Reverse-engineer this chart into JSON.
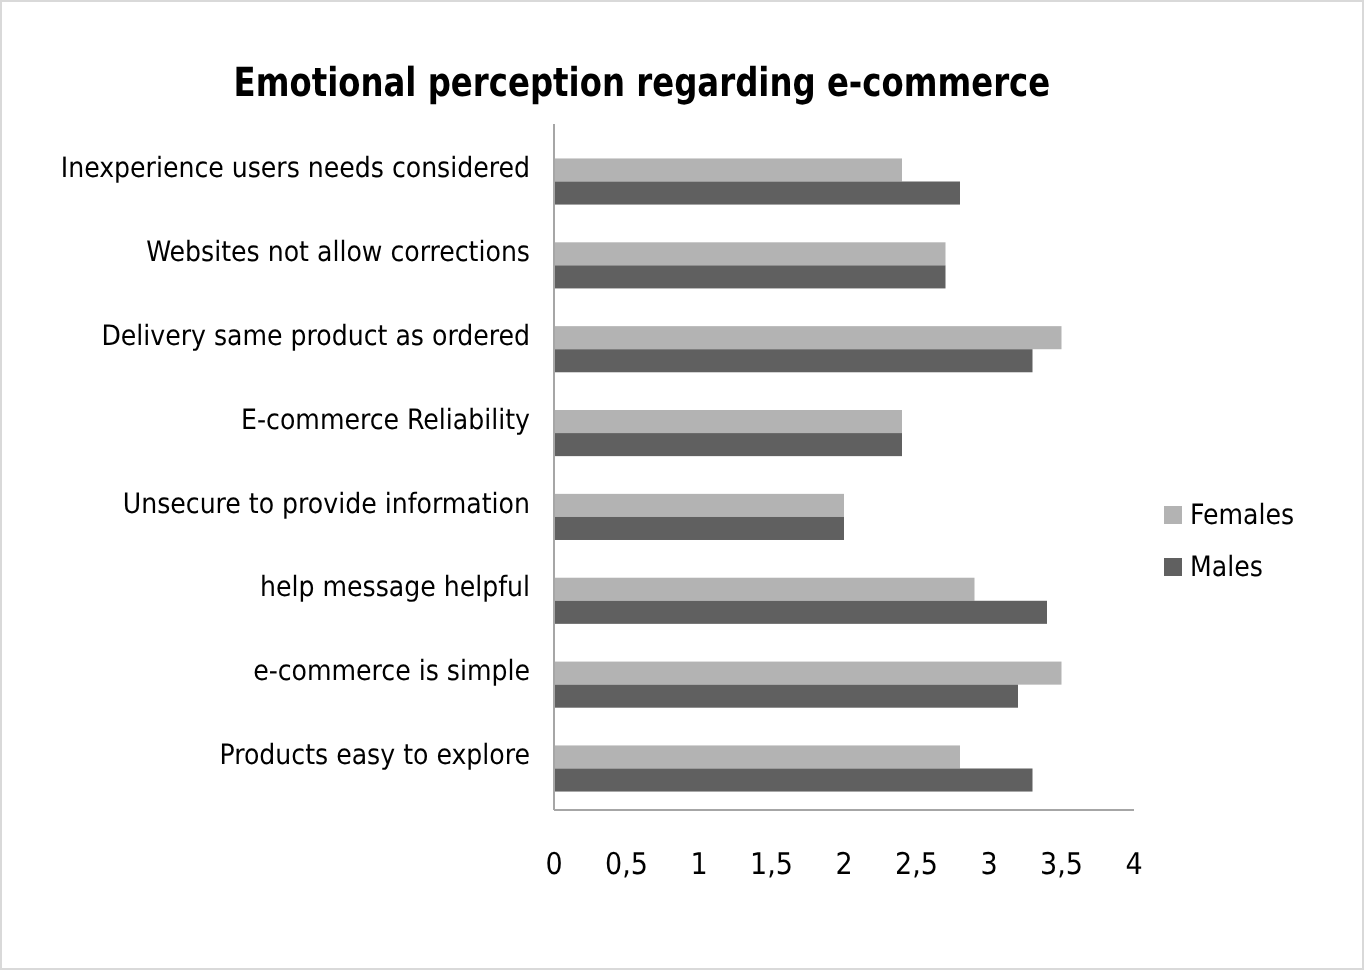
{
  "chart_data": {
    "type": "bar",
    "orientation": "horizontal",
    "title": "Emotional perception regarding e-commerce",
    "categories": [
      "Inexperience users needs considered",
      "Websites not allow corrections",
      "Delivery same product as ordered",
      "E-commerce Reliability",
      "Unsecure to provide information",
      "help message helpful",
      "e-commerce is simple",
      "Products easy to explore"
    ],
    "series": [
      {
        "name": "Females",
        "color": "#b3b3b3",
        "values": [
          2.4,
          2.7,
          3.5,
          2.4,
          2.0,
          2.9,
          3.5,
          2.8
        ]
      },
      {
        "name": "Males",
        "color": "#606060",
        "values": [
          2.8,
          2.7,
          3.3,
          2.4,
          2.0,
          3.4,
          3.2,
          3.3
        ]
      }
    ],
    "xlim": [
      0,
      4
    ],
    "xticks": [
      0,
      {
        "value": 0.5,
        "label": "0,5"
      },
      1,
      {
        "value": 1.5,
        "label": "1,5"
      },
      2,
      {
        "value": 2.5,
        "label": "2,5"
      },
      3,
      {
        "value": 3.5,
        "label": "3,5"
      },
      4
    ],
    "legend": "right",
    "grid": false
  }
}
